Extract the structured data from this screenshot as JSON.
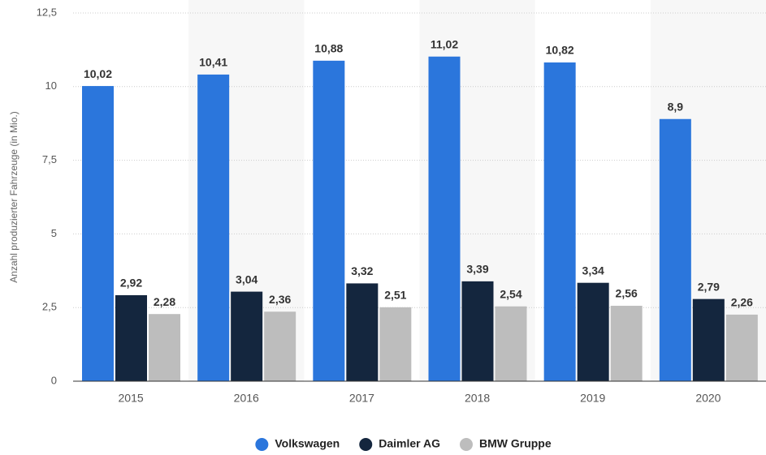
{
  "chart_data": {
    "type": "bar",
    "y_label": "Anzahl produzierter Fahrzeuge (in Mio.)",
    "categories": [
      "2015",
      "2016",
      "2017",
      "2018",
      "2019",
      "2020"
    ],
    "series": [
      {
        "name": "Volkswagen",
        "color": "#2b76dc",
        "values": [
          10.02,
          10.41,
          10.88,
          11.02,
          10.82,
          8.9
        ],
        "value_labels": [
          "10,02",
          "10,41",
          "10,88",
          "11,02",
          "10,82",
          "8,9"
        ]
      },
      {
        "name": "Daimler AG",
        "color": "#14263e",
        "values": [
          2.92,
          3.04,
          3.32,
          3.39,
          3.34,
          2.79
        ],
        "value_labels": [
          "2,92",
          "3,04",
          "3,32",
          "3,39",
          "3,34",
          "2,79"
        ]
      },
      {
        "name": "BMW Gruppe",
        "color": "#bdbdbd",
        "values": [
          2.28,
          2.36,
          2.51,
          2.54,
          2.56,
          2.26
        ],
        "value_labels": [
          "2,28",
          "2,36",
          "2,51",
          "2,54",
          "2,56",
          "2,26"
        ]
      }
    ],
    "ylim": [
      0,
      12.5
    ],
    "yticks": [
      0,
      {
        "value": 2.5,
        "label": "2,5"
      },
      5,
      {
        "value": 7.5,
        "label": "7,5"
      },
      10,
      {
        "value": 12.5,
        "label": "12,5"
      }
    ],
    "grid": true,
    "legend": "bottom"
  }
}
